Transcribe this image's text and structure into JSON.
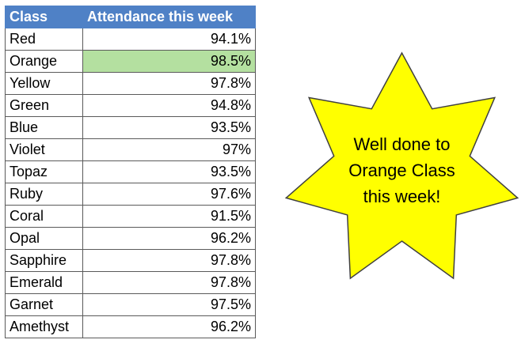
{
  "table": {
    "headers": {
      "class": "Class",
      "attendance": "Attendance this week"
    },
    "rows": [
      {
        "class": "Red",
        "attendance": "94.1%",
        "highlight": false
      },
      {
        "class": "Orange",
        "attendance": "98.5%",
        "highlight": true
      },
      {
        "class": "Yellow",
        "attendance": "97.8%",
        "highlight": false
      },
      {
        "class": "Green",
        "attendance": "94.8%",
        "highlight": false
      },
      {
        "class": "Blue",
        "attendance": "93.5%",
        "highlight": false
      },
      {
        "class": "Violet",
        "attendance": "97%",
        "highlight": false
      },
      {
        "class": "Topaz",
        "attendance": "93.5%",
        "highlight": false
      },
      {
        "class": "Ruby",
        "attendance": "97.6%",
        "highlight": false
      },
      {
        "class": "Coral",
        "attendance": "91.5%",
        "highlight": false
      },
      {
        "class": "Opal",
        "attendance": "96.2%",
        "highlight": false
      },
      {
        "class": "Sapphire",
        "attendance": "97.8%",
        "highlight": false
      },
      {
        "class": "Emerald",
        "attendance": "97.8%",
        "highlight": false
      },
      {
        "class": "Garnet",
        "attendance": "97.5%",
        "highlight": false
      },
      {
        "class": "Amethyst",
        "attendance": "96.2%",
        "highlight": false
      }
    ]
  },
  "star": {
    "lines": [
      "Well done to",
      "Orange Class",
      "this week!"
    ],
    "fill_color": "#ffff00",
    "stroke_color": "#404040"
  },
  "colors": {
    "header_bg": "#4f81c6",
    "highlight_bg": "#b4e0a0"
  }
}
